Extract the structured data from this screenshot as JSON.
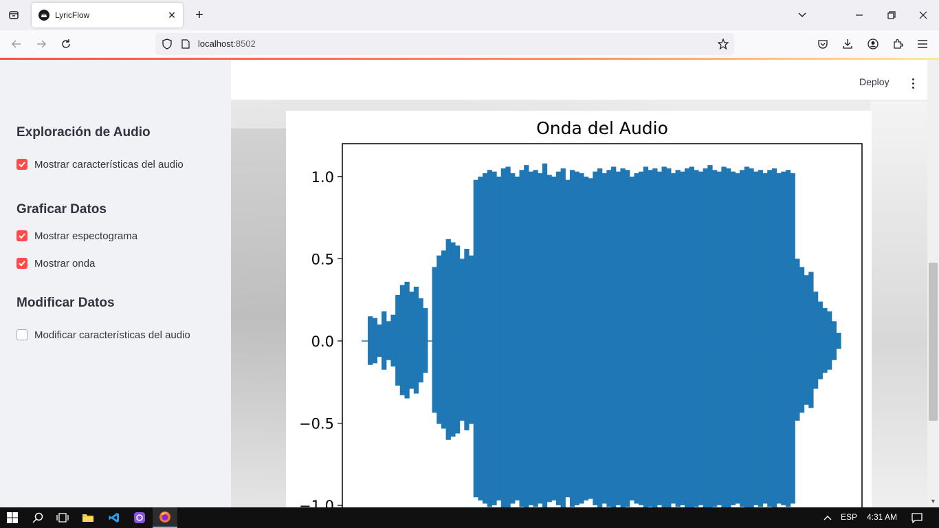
{
  "browser": {
    "tab_title": "LyricFlow",
    "url_host": "localhost",
    "url_port": ":8502"
  },
  "header": {
    "deploy_label": "Deploy"
  },
  "sidebar": {
    "sections": [
      {
        "heading": "Exploración de Audio",
        "items": [
          {
            "label": "Mostrar características del audio",
            "checked": true
          }
        ]
      },
      {
        "heading": "Graficar Datos",
        "items": [
          {
            "label": "Mostrar espectograma",
            "checked": true
          },
          {
            "label": "Mostrar onda",
            "checked": true
          }
        ]
      },
      {
        "heading": "Modificar Datos",
        "items": [
          {
            "label": "Modificar características del audio",
            "checked": false
          }
        ]
      }
    ]
  },
  "taskbar": {
    "language": "ESP",
    "time": "4:31 AM"
  },
  "colors": {
    "accent": "#ff4b4b",
    "waveform": "#1f77b4"
  },
  "chart_data": {
    "type": "line",
    "title": "Onda del Audio",
    "xlabel": "",
    "ylabel": "",
    "ylim": [
      -1.1,
      1.2
    ],
    "yticks": [
      1.0,
      0.5,
      0.0,
      -0.5,
      -1.0
    ],
    "ytick_labels": [
      "1.0",
      "0.5",
      "0.0",
      "−0.5",
      "−1.0"
    ],
    "grid": false,
    "series": [
      {
        "values": [
          0.0,
          0.15,
          0.14,
          0.1,
          0.18,
          0.12,
          0.16,
          0.28,
          0.34,
          0.36,
          0.3,
          0.33,
          0.26,
          0.2,
          0.0,
          0.45,
          0.52,
          0.55,
          0.62,
          0.6,
          0.58,
          0.5,
          0.56,
          0.52,
          0.98,
          1.0,
          1.02,
          1.04,
          1.03,
          1.0,
          1.05,
          1.06,
          1.02,
          1.0,
          1.04,
          1.07,
          1.03,
          1.04,
          1.02,
          1.08,
          1.01,
          1.0,
          1.03,
          1.05,
          0.98,
          1.04,
          1.03,
          1.02,
          1.0,
          0.99,
          1.03,
          1.05,
          1.02,
          1.04,
          1.06,
          1.03,
          1.05,
          1.04,
          1.0,
          1.02,
          1.03,
          1.06,
          1.04,
          1.05,
          1.03,
          1.06,
          1.05,
          1.02,
          1.04,
          1.03,
          1.05,
          1.06,
          1.04,
          1.03,
          1.05,
          1.07,
          1.04,
          1.03,
          1.06,
          1.05,
          1.03,
          1.02,
          1.04,
          1.06,
          1.05,
          1.03,
          1.04,
          1.02,
          1.04,
          1.05,
          1.02,
          1.03,
          1.04,
          1.02,
          0.5,
          0.45,
          0.4,
          0.42,
          0.3,
          0.24,
          0.2,
          0.18,
          0.12,
          0.05
        ]
      }
    ]
  }
}
